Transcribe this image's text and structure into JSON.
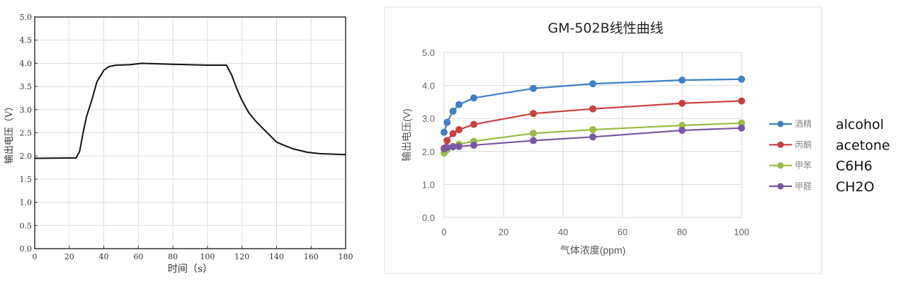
{
  "chart_data": [
    {
      "type": "line",
      "title": "",
      "xlabel": "时间（s）",
      "ylabel": "输出电压（V）",
      "xlim": [
        0,
        180
      ],
      "ylim": [
        0,
        5.0
      ],
      "xticks": [
        "0",
        "20",
        "40",
        "60",
        "80",
        "100",
        "120",
        "140",
        "160",
        "180"
      ],
      "yticks": [
        "0.0",
        "0.5",
        "1.0",
        "1.5",
        "2.0",
        "2.5",
        "3.0",
        "3.5",
        "4.0",
        "4.5",
        "5.0"
      ],
      "grid": true,
      "color": "#111111",
      "series": [
        {
          "x": [
            0,
            24,
            26,
            28,
            30,
            33,
            36,
            40,
            43,
            47,
            55,
            62,
            80,
            100,
            111,
            114,
            117,
            120,
            124,
            128,
            133,
            136,
            140,
            145,
            150,
            158,
            165,
            180
          ],
          "y": [
            1.95,
            1.96,
            2.1,
            2.5,
            2.85,
            3.2,
            3.6,
            3.85,
            3.93,
            3.96,
            3.97,
            4.0,
            3.98,
            3.96,
            3.96,
            3.75,
            3.45,
            3.2,
            2.93,
            2.75,
            2.56,
            2.45,
            2.3,
            2.22,
            2.15,
            2.08,
            2.05,
            2.03
          ]
        }
      ]
    },
    {
      "type": "line",
      "title": "GM-502B线性曲线",
      "xlabel": "气体浓度(ppm)",
      "ylabel": "输出电压(V)",
      "xlim": [
        0,
        100
      ],
      "ylim": [
        0,
        5.0
      ],
      "xticks": [
        "0",
        "20",
        "40",
        "60",
        "80",
        "100"
      ],
      "yticks": [
        "0.0",
        "1.0",
        "2.0",
        "3.0",
        "4.0",
        "5.0"
      ],
      "grid": true,
      "legend_position": "right",
      "x": [
        0,
        1,
        3,
        5,
        10,
        30,
        50,
        80,
        100
      ],
      "series": [
        {
          "name": "酒精",
          "label_en": "alcohol",
          "color": "#3f7fc7",
          "values": [
            2.58,
            2.88,
            3.22,
            3.42,
            3.62,
            3.91,
            4.05,
            4.16,
            4.19
          ]
        },
        {
          "name": "丙酮",
          "label_en": "acetone",
          "color": "#c9413e",
          "values": [
            2.1,
            2.33,
            2.54,
            2.66,
            2.82,
            3.15,
            3.29,
            3.46,
            3.53
          ]
        },
        {
          "name": "甲苯",
          "label_en": "C6H6",
          "color": "#9bbb45",
          "values": [
            1.95,
            2.05,
            2.15,
            2.22,
            2.31,
            2.55,
            2.66,
            2.79,
            2.86
          ]
        },
        {
          "name": "甲醛",
          "label_en": "CH2O",
          "color": "#7a57a3",
          "values": [
            2.08,
            2.12,
            2.14,
            2.15,
            2.19,
            2.33,
            2.44,
            2.64,
            2.71
          ]
        }
      ]
    }
  ]
}
